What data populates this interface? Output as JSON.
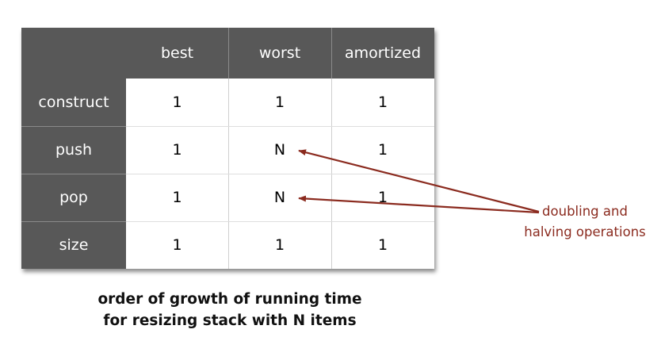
{
  "table": {
    "columns": [
      "best",
      "worst",
      "amortized"
    ],
    "rows": [
      {
        "label": "construct",
        "best": "1",
        "worst": "1",
        "amortized": "1"
      },
      {
        "label": "push",
        "best": "1",
        "worst": "N",
        "amortized": "1"
      },
      {
        "label": "pop",
        "best": "1",
        "worst": "N",
        "amortized": "1"
      },
      {
        "label": "size",
        "best": "1",
        "worst": "1",
        "amortized": "1"
      }
    ]
  },
  "annotation": {
    "line1": "doubling and",
    "line2": "halving operations",
    "color": "#8b2b1f"
  },
  "caption": {
    "line1": "order of growth of running time",
    "line2": "for resizing stack with N items"
  },
  "colors": {
    "header_bg": "#585858",
    "header_text": "#ffffff",
    "arrow": "#8b2b1f"
  }
}
